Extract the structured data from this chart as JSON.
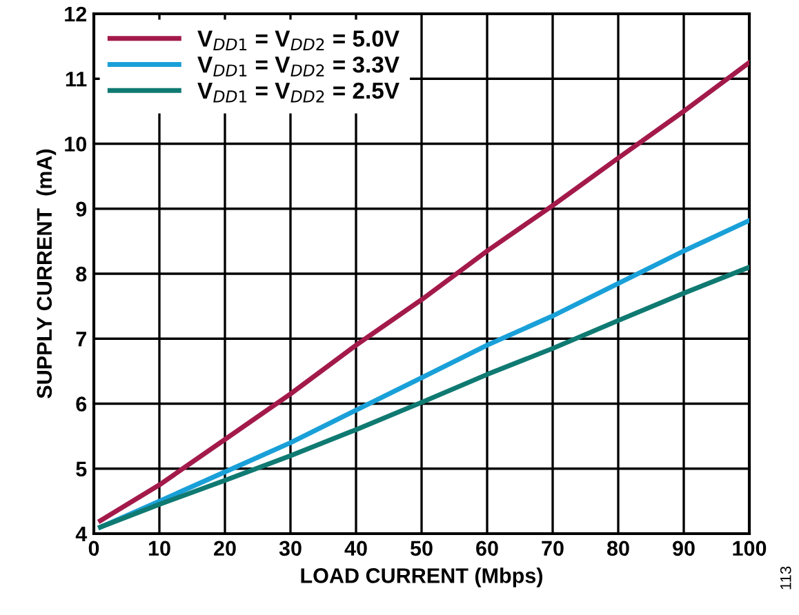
{
  "chart_data": {
    "type": "line",
    "xlabel": "LOAD CURRENT (Mbps)",
    "ylabel": "SUPPLY CURRENT  (mA)",
    "xlim": [
      0,
      100
    ],
    "ylim": [
      4,
      12
    ],
    "xticks": [
      0,
      10,
      20,
      30,
      40,
      50,
      60,
      70,
      80,
      90,
      100
    ],
    "yticks": [
      4,
      5,
      6,
      7,
      8,
      9,
      10,
      11,
      12
    ],
    "grid": true,
    "legend": "top left",
    "line_style": "solid",
    "marker": "none",
    "annotations": [
      "113"
    ],
    "series": [
      {
        "name": "V$_{DD1}$ = V$_{DD2}$ = 5.0V",
        "color": "#a31a4a",
        "x": [
          1,
          10,
          20,
          25,
          30,
          40,
          50,
          60,
          70,
          80,
          90,
          100
        ],
        "values": [
          4.2,
          4.75,
          5.45,
          5.8,
          6.15,
          6.9,
          7.6,
          8.35,
          9.05,
          9.78,
          10.5,
          11.25
        ]
      },
      {
        "name": "V$_{DD1}$ = V$_{DD2}$ = 3.3V",
        "color": "#1aa0d8",
        "x": [
          1,
          10,
          20,
          30,
          40,
          50,
          60,
          70,
          80,
          90,
          100
        ],
        "values": [
          4.1,
          4.5,
          4.95,
          5.4,
          5.9,
          6.4,
          6.9,
          7.35,
          7.85,
          8.35,
          8.82
        ]
      },
      {
        "name": "V$_{DD1}$ = V$_{DD2}$ = 2.5V",
        "color": "#0f7a72",
        "x": [
          1,
          10,
          20,
          30,
          40,
          50,
          60,
          70,
          80,
          90,
          100
        ],
        "values": [
          4.1,
          4.45,
          4.82,
          5.2,
          5.6,
          6.02,
          6.45,
          6.85,
          7.28,
          7.7,
          8.1
        ]
      }
    ]
  }
}
